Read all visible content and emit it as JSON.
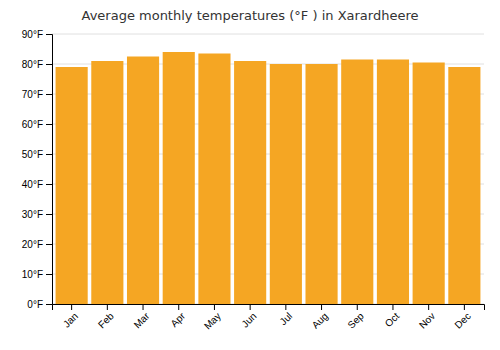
{
  "chart_data": {
    "type": "bar",
    "title": "Average monthly temperatures (°F ) in Xarardheere",
    "categories": [
      "Jan",
      "Feb",
      "Mar",
      "Apr",
      "May",
      "Jun",
      "Jul",
      "Aug",
      "Sep",
      "Oct",
      "Nov",
      "Dec"
    ],
    "values": [
      79,
      81,
      82.5,
      84,
      83.5,
      81,
      80,
      80,
      81.5,
      81.5,
      80.5,
      79
    ],
    "color": "#F5A623",
    "ylim": [
      0,
      90
    ],
    "yticks": [
      {
        "value": 0,
        "label": "0°F"
      },
      {
        "value": 10,
        "label": "10°F"
      },
      {
        "value": 20,
        "label": "20°F"
      },
      {
        "value": 30,
        "label": "30°F"
      },
      {
        "value": 40,
        "label": "40°F"
      },
      {
        "value": 50,
        "label": "50°F"
      },
      {
        "value": 60,
        "label": "60°F"
      },
      {
        "value": 70,
        "label": "70°F"
      },
      {
        "value": 80,
        "label": "80°F"
      },
      {
        "value": 90,
        "label": "90°F"
      }
    ],
    "grid": true
  }
}
